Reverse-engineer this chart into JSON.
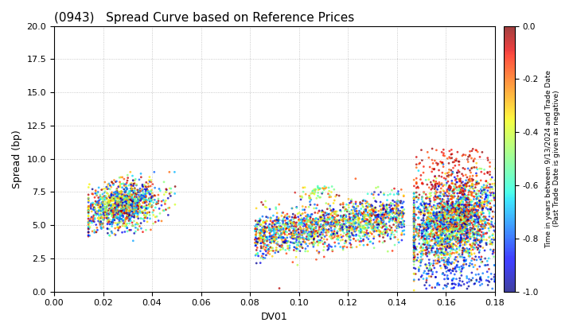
{
  "title": "(0943)   Spread Curve based on Reference Prices",
  "xlabel": "DV01",
  "ylabel": "Spread (bp)",
  "xlim": [
    0.0,
    0.18
  ],
  "ylim": [
    0.0,
    20.0
  ],
  "xticks": [
    0.0,
    0.02,
    0.04,
    0.06,
    0.08,
    0.1,
    0.12,
    0.14,
    0.16,
    0.18
  ],
  "yticks": [
    0.0,
    2.5,
    5.0,
    7.5,
    10.0,
    12.5,
    15.0,
    17.5,
    20.0
  ],
  "colorbar_label1": "Time in years between 9/13/2024 and Trade Date",
  "colorbar_label2": "(Past Trade Date is given as negative)",
  "colorbar_vmin": -1.0,
  "colorbar_vmax": 0.0,
  "colorbar_ticks": [
    0.0,
    -0.2,
    -0.4,
    -0.6,
    -0.8,
    -1.0
  ],
  "cmap": "jet",
  "background_color": "#ffffff",
  "grid_color": "#bbbbbb",
  "marker_size": 4,
  "alpha": 0.75
}
